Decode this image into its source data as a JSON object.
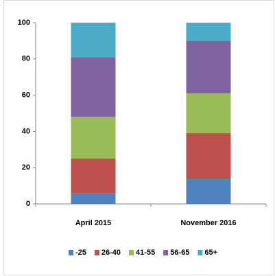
{
  "chart_data": {
    "type": "stacked_bar",
    "categories": [
      "April 2015",
      "November 2016"
    ],
    "series": [
      {
        "name": "-25",
        "color": "#4f81bd",
        "values": [
          6,
          14
        ]
      },
      {
        "name": "26-40",
        "color": "#c0504d",
        "values": [
          19,
          25
        ]
      },
      {
        "name": "41-55",
        "color": "#9bbb59",
        "values": [
          23,
          22
        ]
      },
      {
        "name": "56-65",
        "color": "#8064a2",
        "values": [
          33,
          29
        ]
      },
      {
        "name": "65+",
        "color": "#4bacc6",
        "values": [
          19,
          10
        ]
      }
    ],
    "ylim": [
      0,
      100
    ],
    "yticks": [
      0,
      20,
      40,
      60,
      80,
      100
    ],
    "grid": false,
    "legend": "bottom"
  }
}
